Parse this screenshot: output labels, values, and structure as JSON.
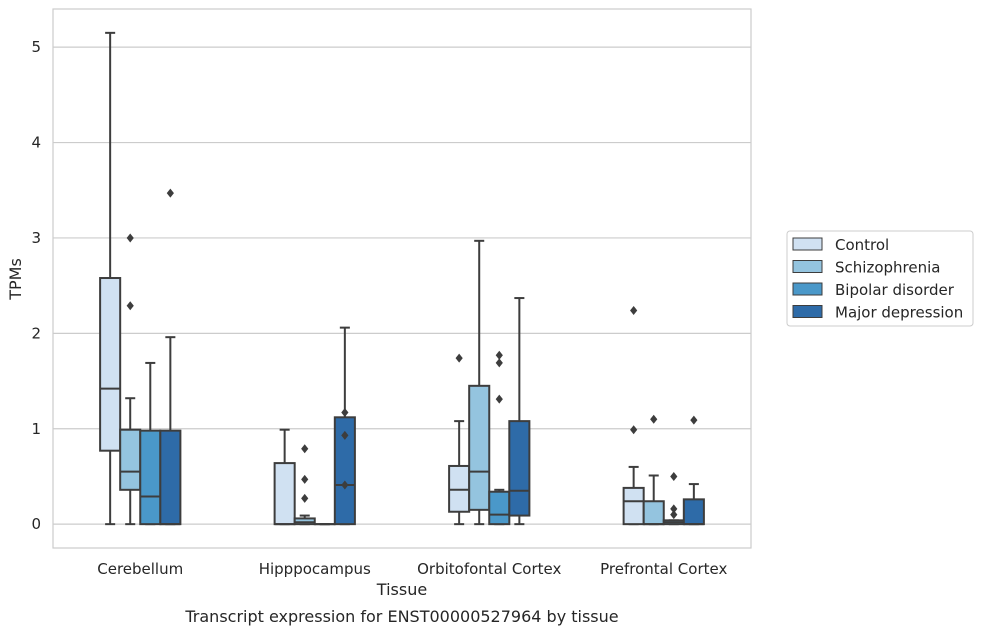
{
  "caption": "Transcript expression for ENST00000527964 by tissue",
  "colors": {
    "Control": "#d0e1f2",
    "Schizophrenia": "#94c4df",
    "Bipolar disorder": "#4a98c9",
    "Major depression": "#2e6ba8",
    "grid": "#cccccc",
    "frame": "#cccccc",
    "box_line": "#3d3d3d"
  },
  "chart_data": {
    "type": "box",
    "xlabel": "Tissue",
    "ylabel": "TPMs",
    "ylim": [
      -0.25,
      5.4
    ],
    "yticks": [
      0,
      1,
      2,
      3,
      4,
      5
    ],
    "ytick_labels": [
      "0",
      "1",
      "2",
      "3",
      "4",
      "5"
    ],
    "grid": "horizontal",
    "legend_position": "right-outside",
    "categories": [
      "Cerebellum",
      "Hipppocampus",
      "Orbitofontal Cortex",
      "Prefrontal Cortex"
    ],
    "series": [
      {
        "name": "Control",
        "boxes": [
          {
            "whislo": 0.0,
            "q1": 0.77,
            "med": 1.42,
            "q3": 2.58,
            "whishi": 5.15,
            "fliers": []
          },
          {
            "whislo": 0.0,
            "q1": 0.0,
            "med": 0.0,
            "q3": 0.64,
            "whishi": 0.99,
            "fliers": []
          },
          {
            "whislo": 0.0,
            "q1": 0.13,
            "med": 0.36,
            "q3": 0.61,
            "whishi": 1.08,
            "fliers": [
              1.74
            ]
          },
          {
            "whislo": 0.0,
            "q1": 0.0,
            "med": 0.24,
            "q3": 0.38,
            "whishi": 0.6,
            "fliers": [
              0.99,
              2.24
            ]
          }
        ]
      },
      {
        "name": "Schizophrenia",
        "boxes": [
          {
            "whislo": 0.0,
            "q1": 0.36,
            "med": 0.55,
            "q3": 0.99,
            "whishi": 1.32,
            "fliers": [
              2.29,
              3.0
            ]
          },
          {
            "whislo": 0.0,
            "q1": 0.0,
            "med": 0.02,
            "q3": 0.06,
            "whishi": 0.09,
            "fliers": [
              0.27,
              0.47,
              0.79
            ]
          },
          {
            "whislo": 0.0,
            "q1": 0.15,
            "med": 0.55,
            "q3": 1.45,
            "whishi": 2.97,
            "fliers": []
          },
          {
            "whislo": 0.0,
            "q1": 0.0,
            "med": 0.0,
            "q3": 0.24,
            "whishi": 0.51,
            "fliers": [
              1.1
            ]
          }
        ]
      },
      {
        "name": "Bipolar disorder",
        "boxes": [
          {
            "whislo": 0.0,
            "q1": 0.0,
            "med": 0.29,
            "q3": 0.98,
            "whishi": 1.69,
            "fliers": []
          },
          {
            "whislo": 0.0,
            "q1": 0.0,
            "med": 0.0,
            "q3": 0.0,
            "whishi": 0.0,
            "fliers": []
          },
          {
            "whislo": 0.0,
            "q1": 0.0,
            "med": 0.1,
            "q3": 0.34,
            "whishi": 0.36,
            "fliers": [
              1.31,
              1.69,
              1.77
            ]
          },
          {
            "whislo": 0.0,
            "q1": 0.0,
            "med": 0.02,
            "q3": 0.04,
            "whishi": 0.04,
            "fliers": [
              0.1,
              0.16,
              0.5
            ]
          }
        ]
      },
      {
        "name": "Major depression",
        "boxes": [
          {
            "whislo": 0.0,
            "q1": 0.0,
            "med": 0.0,
            "q3": 0.98,
            "whishi": 1.96,
            "fliers": [
              3.47
            ]
          },
          {
            "whislo": 0.0,
            "q1": 0.0,
            "med": 0.41,
            "q3": 1.12,
            "whishi": 2.06,
            "fliers": [
              0.41,
              0.93,
              1.17
            ]
          },
          {
            "whislo": 0.0,
            "q1": 0.09,
            "med": 0.35,
            "q3": 1.08,
            "whishi": 2.37,
            "fliers": []
          },
          {
            "whislo": 0.0,
            "q1": 0.0,
            "med": 0.0,
            "q3": 0.26,
            "whishi": 0.42,
            "fliers": [
              1.09
            ]
          }
        ]
      }
    ]
  }
}
